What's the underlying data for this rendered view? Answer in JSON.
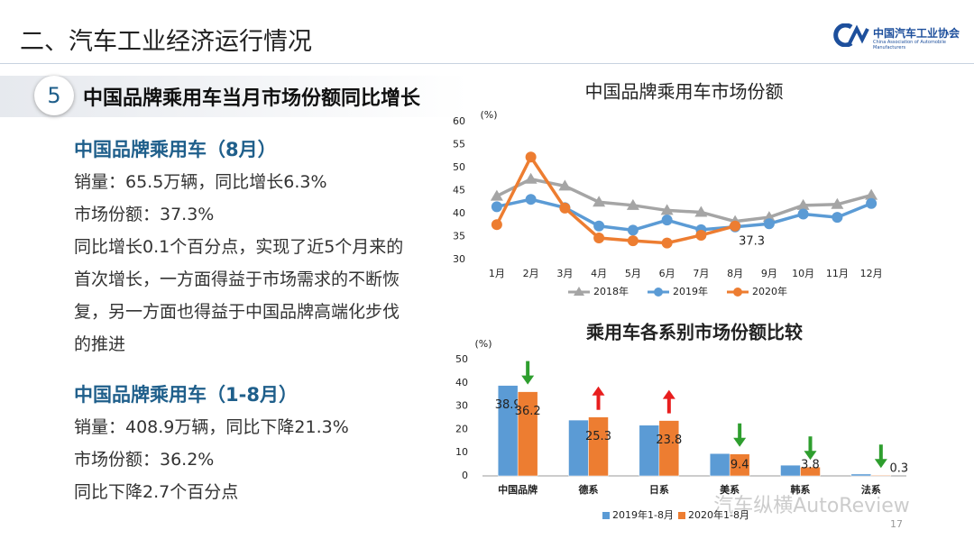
{
  "header": {
    "title": "二、汽车工业经济运行情况",
    "logo_name": "中国汽车工业协会",
    "logo_english": "China Association of Automobile Manufacturers"
  },
  "section": {
    "number": "5",
    "heading": "中国品牌乘用车当月市场份额同比增长"
  },
  "blocks": [
    {
      "title": "中国品牌乘用车（8月）",
      "lines": [
        "销量：65.5万辆，同比增长6.3%",
        "市场份额：37.3%",
        "同比增长0.1个百分点，实现了近5个月来的首次增长，一方面得益于市场需求的不断恢复，另一方面也得益于中国品牌高端化步伐的推进"
      ]
    },
    {
      "title": "中国品牌乘用车（1-8月）",
      "lines": [
        "销量：408.9万辆，同比下降21.3%",
        "市场份额：36.2%",
        "同比下降2.7个百分点"
      ]
    }
  ],
  "chart_data": [
    {
      "type": "line",
      "title": "中国品牌乘用车市场份额",
      "y_label": "(%)",
      "categories": [
        "1月",
        "2月",
        "3月",
        "4月",
        "5月",
        "6月",
        "7月",
        "8月",
        "9月",
        "10月",
        "11月",
        "12月"
      ],
      "ylim": [
        30,
        60
      ],
      "yticks": [
        30,
        35,
        40,
        45,
        50,
        55,
        60
      ],
      "grid": false,
      "legend": "bottom",
      "series": [
        {
          "name": "2018年",
          "color": "#a5a5a5",
          "marker": "triangle",
          "values": [
            43.8,
            47.5,
            46.0,
            42.5,
            41.8,
            40.7,
            40.3,
            38.3,
            39.2,
            41.8,
            42.0,
            44.0
          ]
        },
        {
          "name": "2019年",
          "color": "#5b9bd5",
          "marker": "circle",
          "values": [
            41.5,
            43.1,
            41.3,
            37.3,
            36.4,
            38.6,
            36.5,
            37.1,
            37.8,
            39.9,
            39.2,
            42.2
          ]
        },
        {
          "name": "2020年",
          "color": "#ed7d31",
          "marker": "circle",
          "values": [
            37.6,
            52.3,
            41.2,
            34.7,
            34.1,
            33.6,
            35.3,
            37.3,
            null,
            null,
            null,
            null
          ],
          "value_labels": [
            null,
            null,
            null,
            null,
            null,
            null,
            null,
            "37.3",
            null,
            null,
            null,
            null
          ]
        }
      ]
    },
    {
      "type": "bar",
      "title": "乘用车各系别市场份额比较",
      "y_label": "(%)",
      "categories": [
        "中国品牌",
        "德系",
        "日系",
        "美系",
        "韩系",
        "法系"
      ],
      "ylim": [
        0,
        50
      ],
      "yticks": [
        0,
        10,
        20,
        30,
        40,
        50
      ],
      "grid": false,
      "legend": "bottom",
      "arrows": [
        "down",
        "up",
        "up",
        "down",
        "down",
        "down"
      ],
      "series": [
        {
          "name": "2019年1-8月",
          "color": "#5b9bd5",
          "values": [
            38.9,
            24.0,
            21.8,
            9.6,
            4.6,
            0.8
          ],
          "value_labels": [
            "38.9",
            null,
            null,
            null,
            null,
            null
          ]
        },
        {
          "name": "2020年1-8月",
          "color": "#ed7d31",
          "values": [
            36.2,
            25.3,
            23.8,
            9.4,
            3.8,
            0.3
          ],
          "value_labels": [
            "36.2",
            "25.3",
            "23.8",
            "9.4",
            "3.8",
            "0.3"
          ]
        }
      ]
    }
  ],
  "watermark": "汽车纵横AutoReview",
  "page_number": "17"
}
